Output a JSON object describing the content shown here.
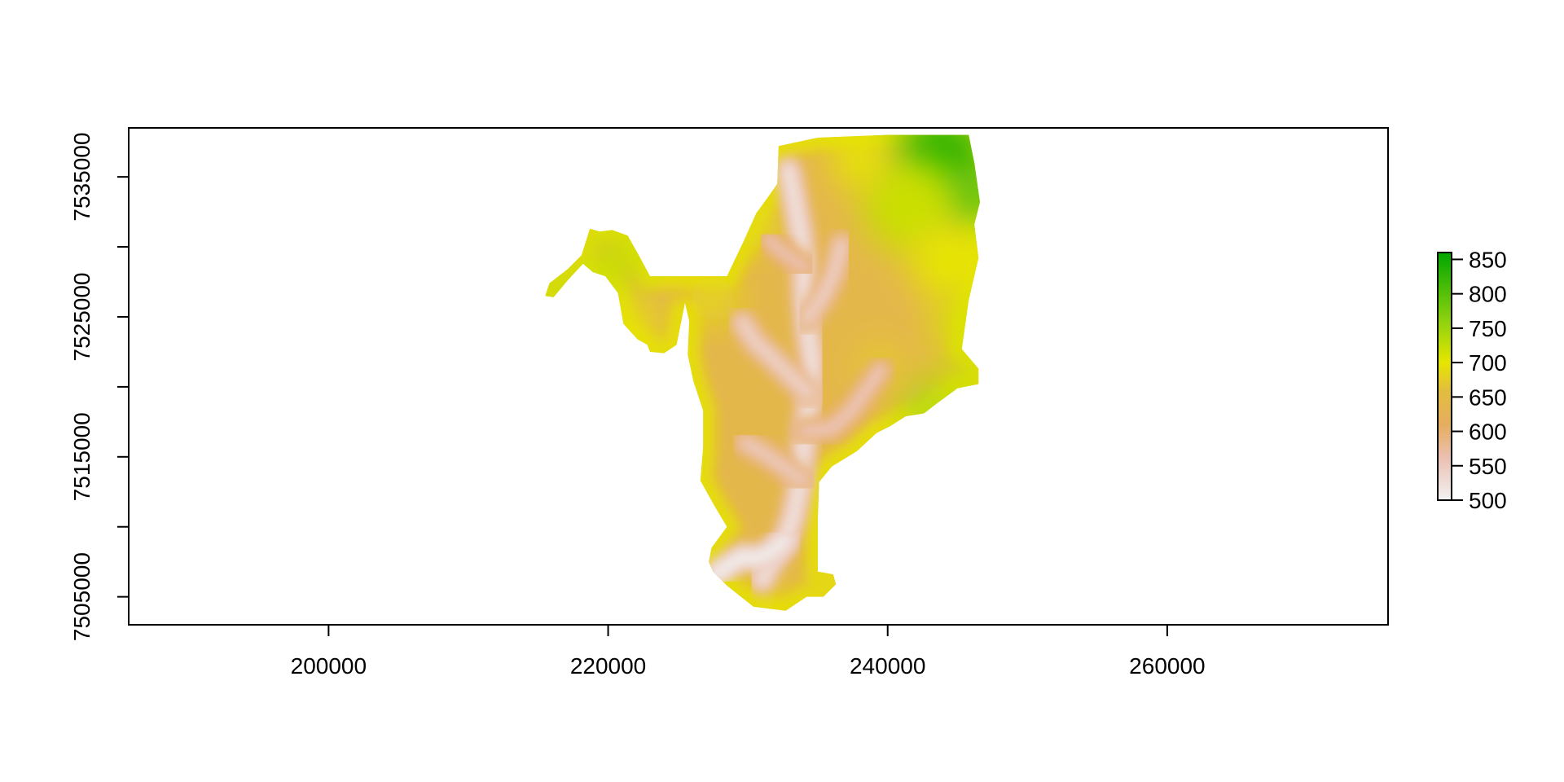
{
  "chart_data": {
    "type": "heatmap",
    "title": "",
    "xlabel": "",
    "ylabel": "",
    "xlim": [
      185700,
      275800
    ],
    "ylim": [
      7503000,
      7538500
    ],
    "x_ticks": [
      {
        "value": 200000,
        "label": "200000"
      },
      {
        "value": 220000,
        "label": "220000"
      },
      {
        "value": 240000,
        "label": "240000"
      },
      {
        "value": 260000,
        "label": "260000"
      }
    ],
    "y_ticks": [
      {
        "value": 7505000,
        "label": "7505000"
      },
      {
        "value": 7510000,
        "label": ""
      },
      {
        "value": 7515000,
        "label": "7515000"
      },
      {
        "value": 7520000,
        "label": ""
      },
      {
        "value": 7525000,
        "label": "7525000"
      },
      {
        "value": 7530000,
        "label": ""
      },
      {
        "value": 7535000,
        "label": "7535000"
      }
    ],
    "legend": {
      "placement": "right",
      "range": [
        500,
        860
      ],
      "ticks": [
        {
          "value": 500,
          "label": "500"
        },
        {
          "value": 550,
          "label": "550"
        },
        {
          "value": 600,
          "label": "600"
        },
        {
          "value": 650,
          "label": "650"
        },
        {
          "value": 700,
          "label": "700"
        },
        {
          "value": 750,
          "label": "750"
        },
        {
          "value": 800,
          "label": "800"
        },
        {
          "value": 850,
          "label": "850"
        }
      ],
      "color_stops": [
        {
          "value": 500,
          "color": "#f2f2f2"
        },
        {
          "value": 560,
          "color": "#ebc1b4"
        },
        {
          "value": 610,
          "color": "#e6ad5f"
        },
        {
          "value": 660,
          "color": "#e2be3e"
        },
        {
          "value": 700,
          "color": "#e6e600"
        },
        {
          "value": 760,
          "color": "#8fd20f"
        },
        {
          "value": 860,
          "color": "#00a600"
        }
      ]
    },
    "grid": false,
    "raster_outline": [
      [
        232200,
        7537200
      ],
      [
        235000,
        7537800
      ],
      [
        240000,
        7538000
      ],
      [
        245800,
        7538000
      ],
      [
        246200,
        7536000
      ],
      [
        246600,
        7533200
      ],
      [
        246200,
        7531600
      ],
      [
        246500,
        7529200
      ],
      [
        245800,
        7526200
      ],
      [
        245300,
        7522700
      ],
      [
        246500,
        7521300
      ],
      [
        246500,
        7520200
      ],
      [
        245000,
        7519900
      ],
      [
        243500,
        7518800
      ],
      [
        242600,
        7518100
      ],
      [
        241300,
        7517900
      ],
      [
        240200,
        7517200
      ],
      [
        239200,
        7516700
      ],
      [
        237800,
        7515400
      ],
      [
        236000,
        7514300
      ],
      [
        235100,
        7513200
      ],
      [
        235000,
        7510500
      ],
      [
        235000,
        7506800
      ],
      [
        236100,
        7506600
      ],
      [
        236300,
        7505900
      ],
      [
        235400,
        7505000
      ],
      [
        234200,
        7505000
      ],
      [
        232700,
        7504000
      ],
      [
        230400,
        7504300
      ],
      [
        229500,
        7505000
      ],
      [
        228500,
        7505800
      ],
      [
        227500,
        7506800
      ],
      [
        227200,
        7507500
      ],
      [
        227400,
        7508500
      ],
      [
        228500,
        7510000
      ],
      [
        227600,
        7511500
      ],
      [
        226600,
        7513300
      ],
      [
        226800,
        7515700
      ],
      [
        226800,
        7518300
      ],
      [
        226100,
        7520400
      ],
      [
        225700,
        7522300
      ],
      [
        225800,
        7524700
      ],
      [
        225500,
        7526000
      ],
      [
        224900,
        7523000
      ],
      [
        224000,
        7522400
      ],
      [
        223000,
        7522500
      ],
      [
        222800,
        7523000
      ],
      [
        222100,
        7523400
      ],
      [
        221100,
        7524500
      ],
      [
        220700,
        7526700
      ],
      [
        219800,
        7527900
      ],
      [
        218900,
        7528200
      ],
      [
        218200,
        7528800
      ],
      [
        217100,
        7527600
      ],
      [
        216100,
        7526400
      ],
      [
        215500,
        7526500
      ],
      [
        215800,
        7527400
      ],
      [
        217100,
        7528400
      ],
      [
        218100,
        7529400
      ],
      [
        218700,
        7531300
      ],
      [
        219400,
        7531100
      ],
      [
        220300,
        7531200
      ],
      [
        221400,
        7530800
      ],
      [
        222300,
        7529200
      ],
      [
        223000,
        7527900
      ],
      [
        225300,
        7527900
      ],
      [
        228500,
        7527900
      ],
      [
        229600,
        7530200
      ],
      [
        230600,
        7532400
      ],
      [
        231400,
        7533500
      ],
      [
        232100,
        7534500
      ],
      [
        232200,
        7537200
      ]
    ],
    "valley_paths": [
      {
        "value": 520,
        "points": [
          [
            231000,
            7506200
          ],
          [
            231700,
            7507600
          ],
          [
            232600,
            7509000
          ],
          [
            233200,
            7510500
          ],
          [
            233700,
            7512800
          ],
          [
            233900,
            7515000
          ],
          [
            234200,
            7517300
          ],
          [
            234500,
            7519500
          ],
          [
            234600,
            7521800
          ],
          [
            234300,
            7524000
          ],
          [
            234100,
            7526300
          ],
          [
            234000,
            7528500
          ],
          [
            233800,
            7530800
          ],
          [
            233400,
            7533000
          ],
          [
            232900,
            7535500
          ]
        ]
      },
      {
        "value": 505,
        "points": [
          [
            227700,
            7506600
          ],
          [
            228700,
            7507300
          ],
          [
            229700,
            7507900
          ],
          [
            230600,
            7507700
          ],
          [
            231700,
            7508200
          ],
          [
            232700,
            7509100
          ]
        ]
      },
      {
        "value": 540,
        "points": [
          [
            234400,
            7519500
          ],
          [
            233000,
            7520800
          ],
          [
            231800,
            7522000
          ],
          [
            230500,
            7523200
          ],
          [
            229600,
            7524600
          ]
        ]
      },
      {
        "value": 545,
        "points": [
          [
            234200,
            7524800
          ],
          [
            235400,
            7526500
          ],
          [
            236200,
            7528200
          ],
          [
            236700,
            7530200
          ]
        ]
      },
      {
        "value": 555,
        "points": [
          [
            234000,
            7516800
          ],
          [
            236000,
            7517000
          ],
          [
            237400,
            7518300
          ],
          [
            238500,
            7519800
          ],
          [
            239500,
            7521200
          ]
        ]
      },
      {
        "value": 550,
        "points": [
          [
            233900,
            7513300
          ],
          [
            232500,
            7514300
          ],
          [
            231200,
            7515200
          ],
          [
            229800,
            7516000
          ]
        ]
      },
      {
        "value": 560,
        "points": [
          [
            234100,
            7528500
          ],
          [
            232600,
            7529500
          ],
          [
            231500,
            7530500
          ]
        ]
      }
    ],
    "highlands": [
      {
        "value": 830,
        "x": 243800,
        "y": 7536300,
        "r": 3200
      },
      {
        "value": 800,
        "x": 245600,
        "y": 7533500,
        "r": 2200
      },
      {
        "value": 720,
        "x": 241500,
        "y": 7533000,
        "r": 3400
      },
      {
        "value": 700,
        "x": 244500,
        "y": 7529000,
        "r": 2800
      },
      {
        "value": 710,
        "x": 245300,
        "y": 7524500,
        "r": 2000
      },
      {
        "value": 740,
        "x": 242800,
        "y": 7518700,
        "r": 1800
      },
      {
        "value": 720,
        "x": 245300,
        "y": 7520500,
        "r": 1600
      },
      {
        "value": 720,
        "x": 220500,
        "y": 7529000,
        "r": 2300
      },
      {
        "value": 700,
        "x": 222000,
        "y": 7524500,
        "r": 1500
      },
      {
        "value": 740,
        "x": 216500,
        "y": 7527000,
        "r": 1100
      },
      {
        "value": 700,
        "x": 238000,
        "y": 7536300,
        "r": 2000
      },
      {
        "value": 690,
        "x": 230600,
        "y": 7531500,
        "r": 1700
      },
      {
        "value": 690,
        "x": 227500,
        "y": 7526300,
        "r": 1700
      },
      {
        "value": 690,
        "x": 231200,
        "y": 7504800,
        "r": 1300
      },
      {
        "value": 670,
        "x": 235600,
        "y": 7506000,
        "r": 900
      },
      {
        "value": 670,
        "x": 239500,
        "y": 7521500,
        "r": 1800
      }
    ]
  }
}
